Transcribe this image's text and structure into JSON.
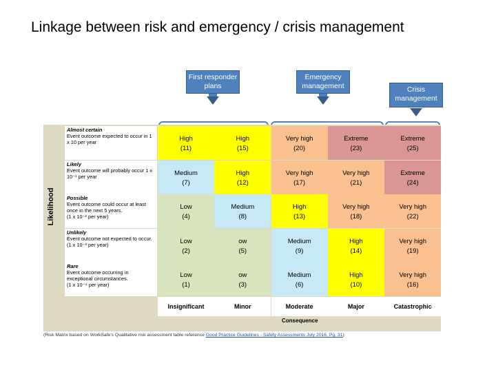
{
  "title": "Linkage between risk and emergency / crisis management",
  "callouts": {
    "first_responder": "First responder\nplans",
    "emergency": "Emergency\nmanagement",
    "crisis": "Crisis\nmanagement"
  },
  "matrix": {
    "likelihood_label": "Likelihood",
    "consequence_label": "Consequence",
    "rows": [
      {
        "name": "Almost certain",
        "desc": "Event outcome expected to occur in 1\nx 10⁲ per year"
      },
      {
        "name": "Likely",
        "desc": "Event outcome will probably occur 1 x\n10⁻¹ per year"
      },
      {
        "name": "Possible",
        "desc": "Event outcome could occur at least\nonce in the next 5 years.\n(1 x 10⁻² per year)"
      },
      {
        "name": "Unlikely",
        "desc": "Event outcome not expected to occur.\n(1 x 10⁻³ per year)"
      },
      {
        "name": "Rare",
        "desc": "Event outcome occurring in\nexceptional circumstances.\n(1 x 10⁻⁴ per year)"
      }
    ],
    "columns": [
      "Insignificant",
      "Minor",
      "Moderate",
      "Major",
      "Catastrophic"
    ],
    "cells": [
      [
        {
          "l": "High",
          "n": "(11)",
          "c": "#ffff00"
        },
        {
          "l": "High",
          "n": "(15)",
          "c": "#ffff00"
        },
        {
          "l": "Very high",
          "n": "(20)",
          "c": "#fac090"
        },
        {
          "l": "Extreme",
          "n": "(23)",
          "c": "#d99694"
        },
        {
          "l": "Extreme",
          "n": "(25)",
          "c": "#d99694"
        }
      ],
      [
        {
          "l": "Medium",
          "n": "(7)",
          "c": "#c6e8f7"
        },
        {
          "l": "High",
          "n": "(12)",
          "c": "#ffff00"
        },
        {
          "l": "Very high",
          "n": "(17)",
          "c": "#fac090"
        },
        {
          "l": "Very high",
          "n": "(21)",
          "c": "#fac090"
        },
        {
          "l": "Extreme",
          "n": "(24)",
          "c": "#d99694"
        }
      ],
      [
        {
          "l": "Low",
          "n": "(4)",
          "c": "#d7e4bd"
        },
        {
          "l": "Medium",
          "n": "(8)",
          "c": "#c6e8f7"
        },
        {
          "l": "High",
          "n": "(13)",
          "c": "#ffff00"
        },
        {
          "l": "Very high",
          "n": "(18)",
          "c": "#fac090"
        },
        {
          "l": "Very high",
          "n": "(22)",
          "c": "#fac090"
        }
      ],
      [
        {
          "l": "Low",
          "n": "(2)",
          "c": "#d7e4bd"
        },
        {
          "l": "ow",
          "n": "(5)",
          "c": "#d7e4bd"
        },
        {
          "l": "Medium",
          "n": "(9)",
          "c": "#c6e8f7"
        },
        {
          "l": "High",
          "n": "(14)",
          "c": "#ffff00"
        },
        {
          "l": "Very high",
          "n": "(19)",
          "c": "#fac090"
        }
      ],
      [
        {
          "l": "Low",
          "n": "(1)",
          "c": "#d7e4bd"
        },
        {
          "l": "ow",
          "n": "(3)",
          "c": "#d7e4bd"
        },
        {
          "l": "Medium",
          "n": "(6)",
          "c": "#c6e8f7"
        },
        {
          "l": "High",
          "n": "(10)",
          "c": "#ffff00"
        },
        {
          "l": "Very high",
          "n": "(16)",
          "c": "#fac090"
        }
      ]
    ]
  },
  "footnote": {
    "text": "(Risk Matrix based on WorkSafe's Qualitative risk assessment table reference ",
    "link": "Good Practice Guidelines - Safety Assessments July 2016, Pg. 31",
    "end": ")"
  }
}
